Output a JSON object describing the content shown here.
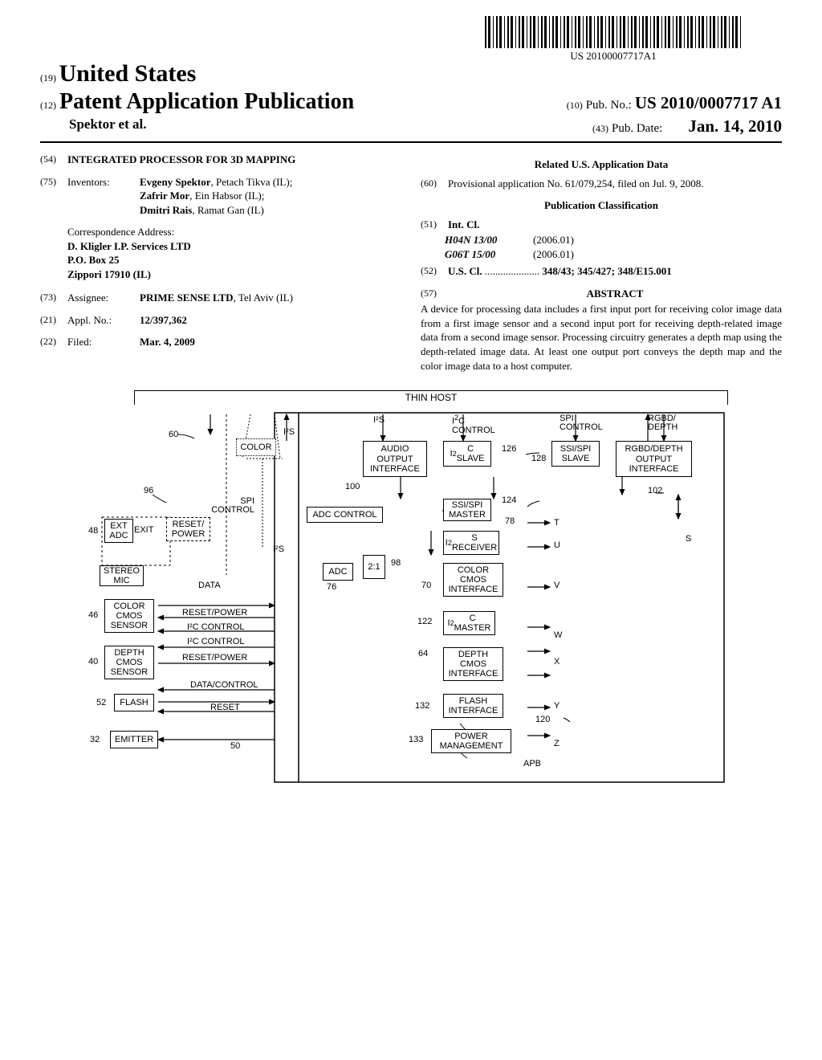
{
  "barcode_label": "US 20100007717A1",
  "country_prefix": "(19)",
  "country": "United States",
  "pub_type_prefix": "(12)",
  "pub_type": "Patent Application Publication",
  "pub_no_prefix": "(10)",
  "pub_no_label": "Pub. No.:",
  "pub_no": "US 2010/0007717 A1",
  "authors": "Spektor et al.",
  "pub_date_prefix": "(43)",
  "pub_date_label": "Pub. Date:",
  "pub_date": "Jan. 14, 2010",
  "title_num": "(54)",
  "title": "INTEGRATED PROCESSOR FOR 3D MAPPING",
  "inventors_num": "(75)",
  "inventors_label": "Inventors:",
  "inventor1": "Evgeny Spektor",
  "inventor1_loc": ", Petach Tikva (IL);",
  "inventor2": "Zafrir Mor",
  "inventor2_loc": ", Ein Habsor (IL);",
  "inventor3": "Dmitri Rais",
  "inventor3_loc": ", Ramat Gan (IL)",
  "correspondence_label": "Correspondence Address:",
  "correspondence_1": "D. Kligler I.P. Services LTD",
  "correspondence_2": "P.O. Box 25",
  "correspondence_3": "Zippori 17910 (IL)",
  "assignee_num": "(73)",
  "assignee_label": "Assignee:",
  "assignee": "PRIME SENSE LTD",
  "assignee_loc": ", Tel Aviv (IL)",
  "appl_num": "(21)",
  "appl_label": "Appl. No.:",
  "appl_val": "12/397,362",
  "filed_num": "(22)",
  "filed_label": "Filed:",
  "filed_val": "Mar. 4, 2009",
  "related_heading": "Related U.S. Application Data",
  "provisional_num": "(60)",
  "provisional_text": "Provisional application No. 61/079,254, filed on Jul. 9, 2008.",
  "classification_heading": "Publication Classification",
  "intcl_num": "(51)",
  "intcl_label": "Int. Cl.",
  "intcl_1_code": "H04N 13/00",
  "intcl_1_ver": "(2006.01)",
  "intcl_2_code": "G06T 15/00",
  "intcl_2_ver": "(2006.01)",
  "uscl_num": "(52)",
  "uscl_label": "U.S. Cl.",
  "uscl_dots": " .....................",
  "uscl_val": "348/43; 345/427; 348/E15.001",
  "abstract_num": "(57)",
  "abstract_label": "ABSTRACT",
  "abstract_text": "A device for processing data includes a first input port for receiving color image data from a first image sensor and a second input port for receiving depth-related image data from a second image sensor. Processing circuitry generates a depth map using the depth-related image data. At least one output port conveys the depth map and the color image data to a host computer.",
  "diagram": {
    "thin_host": "THIN HOST",
    "boxes": {
      "ext_adc": "EXT\nADC",
      "stereo_mic": "STEREO\nMIC",
      "color_cmos_sensor": "COLOR\nCMOS\nSENSOR",
      "depth_cmos_sensor": "DEPTH\nCMOS\nSENSOR",
      "flash_52": "FLASH",
      "emitter": "EMITTER",
      "reset_power": "RESET/\nPOWER",
      "color_top": "COLOR",
      "adc": "ADC",
      "mux": "2:1",
      "adc_control": "ADC CONTROL",
      "audio_output_interface": "AUDIO\nOUTPUT\nINTERFACE",
      "i2c_slave": "I²C\nSLAVE",
      "ssi_spi_slave": "SSI/SPI\nSLAVE",
      "rgbd_depth_output_interface": "RGBD/DEPTH\nOUTPUT\nINTERFACE",
      "ssi_spi_master": "SSI/SPI\nMASTER",
      "i2s_receiver": "I²S\nRECEIVER",
      "color_cmos_interface": "COLOR\nCMOS\nINTERFACE",
      "i2c_master": "I²C\nMASTER",
      "depth_cmos_interface": "DEPTH\nCMOS\nINTERFACE",
      "flash_interface": "FLASH\nINTERFACE",
      "power_management": "POWER\nMANAGEMENT"
    },
    "labels": {
      "spi_control_left": "SPI\nCONTROL",
      "exit": "EXIT",
      "data_left": "DATA",
      "i2s_1": "I²S",
      "i2s_2": "I²S",
      "i2s_3": "I²S",
      "reset_power_1": "RESET/POWER",
      "i2c_control_1": "I²C CONTROL",
      "i2c_control_2": "I²C CONTROL",
      "reset_power_2": "RESET/POWER",
      "data_control": "DATA/CONTROL",
      "reset": "RESET",
      "i2c_control_top": "I²C\nCONTROL",
      "spi_control_top": "SPI\nCONTROL",
      "rgbd_depth_top": "RGBD/\nDEPTH",
      "apb": "APB",
      "T": "T",
      "U": "U",
      "V": "V",
      "W": "W",
      "X": "X",
      "Y": "Y",
      "Z": "Z",
      "S": "S"
    },
    "refs": {
      "r60": "60",
      "r96": "96",
      "r48": "48",
      "r46": "46",
      "r40": "40",
      "r52": "52",
      "r32": "32",
      "r50": "50",
      "r76": "76",
      "r98": "98",
      "r100": "100",
      "r70": "70",
      "r122": "122",
      "r64": "64",
      "r132": "132",
      "r133": "133",
      "r126": "126",
      "r124": "124",
      "r128": "128",
      "r78": "78",
      "r102": "102",
      "r120": "120"
    }
  }
}
